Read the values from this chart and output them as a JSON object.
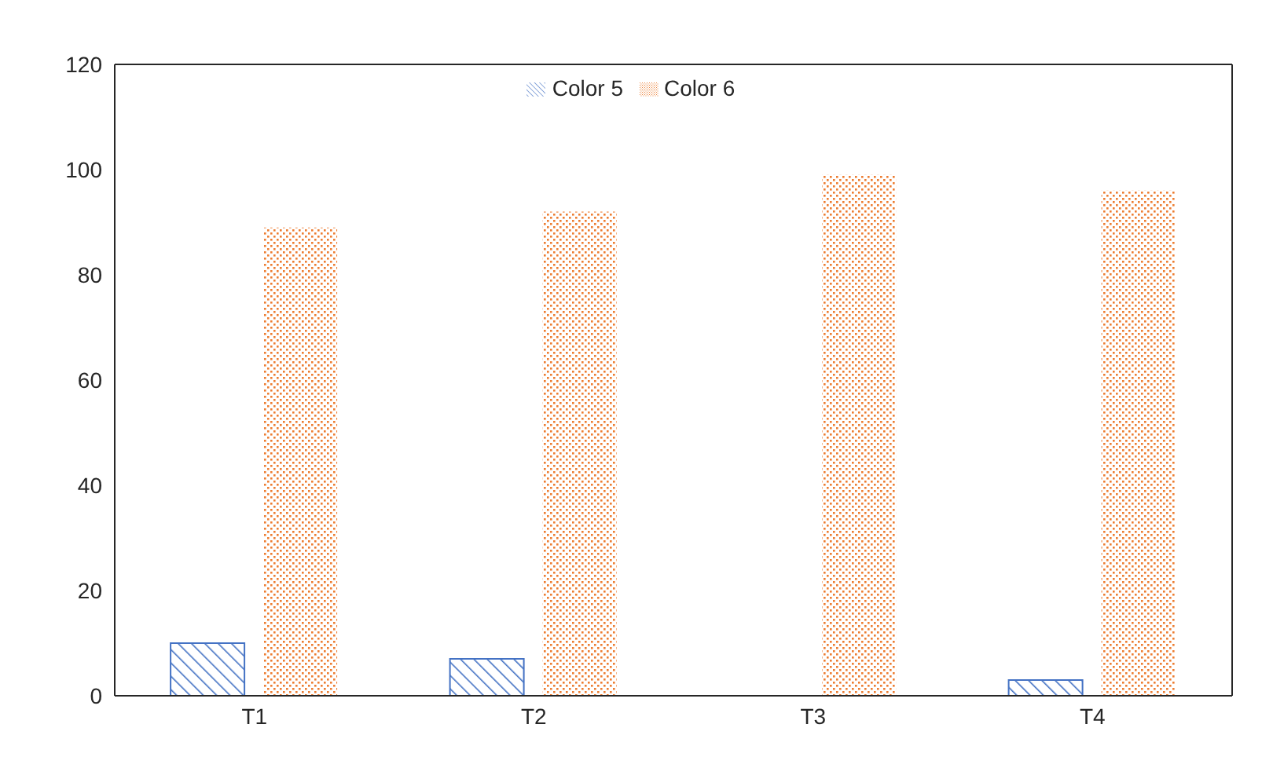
{
  "chart_data": {
    "type": "bar",
    "categories": [
      "T1",
      "T2",
      "T3",
      "T4"
    ],
    "series": [
      {
        "name": "Color 5",
        "color": "#4472c4",
        "values": [
          10,
          7,
          0,
          3
        ]
      },
      {
        "name": "Color 6",
        "color": "#ed7d31",
        "values": [
          89,
          92,
          99,
          96
        ]
      }
    ],
    "ylim": [
      0,
      120
    ],
    "yticks": [
      0,
      20,
      40,
      60,
      80,
      100,
      120
    ],
    "grid": false,
    "legend": "top"
  }
}
